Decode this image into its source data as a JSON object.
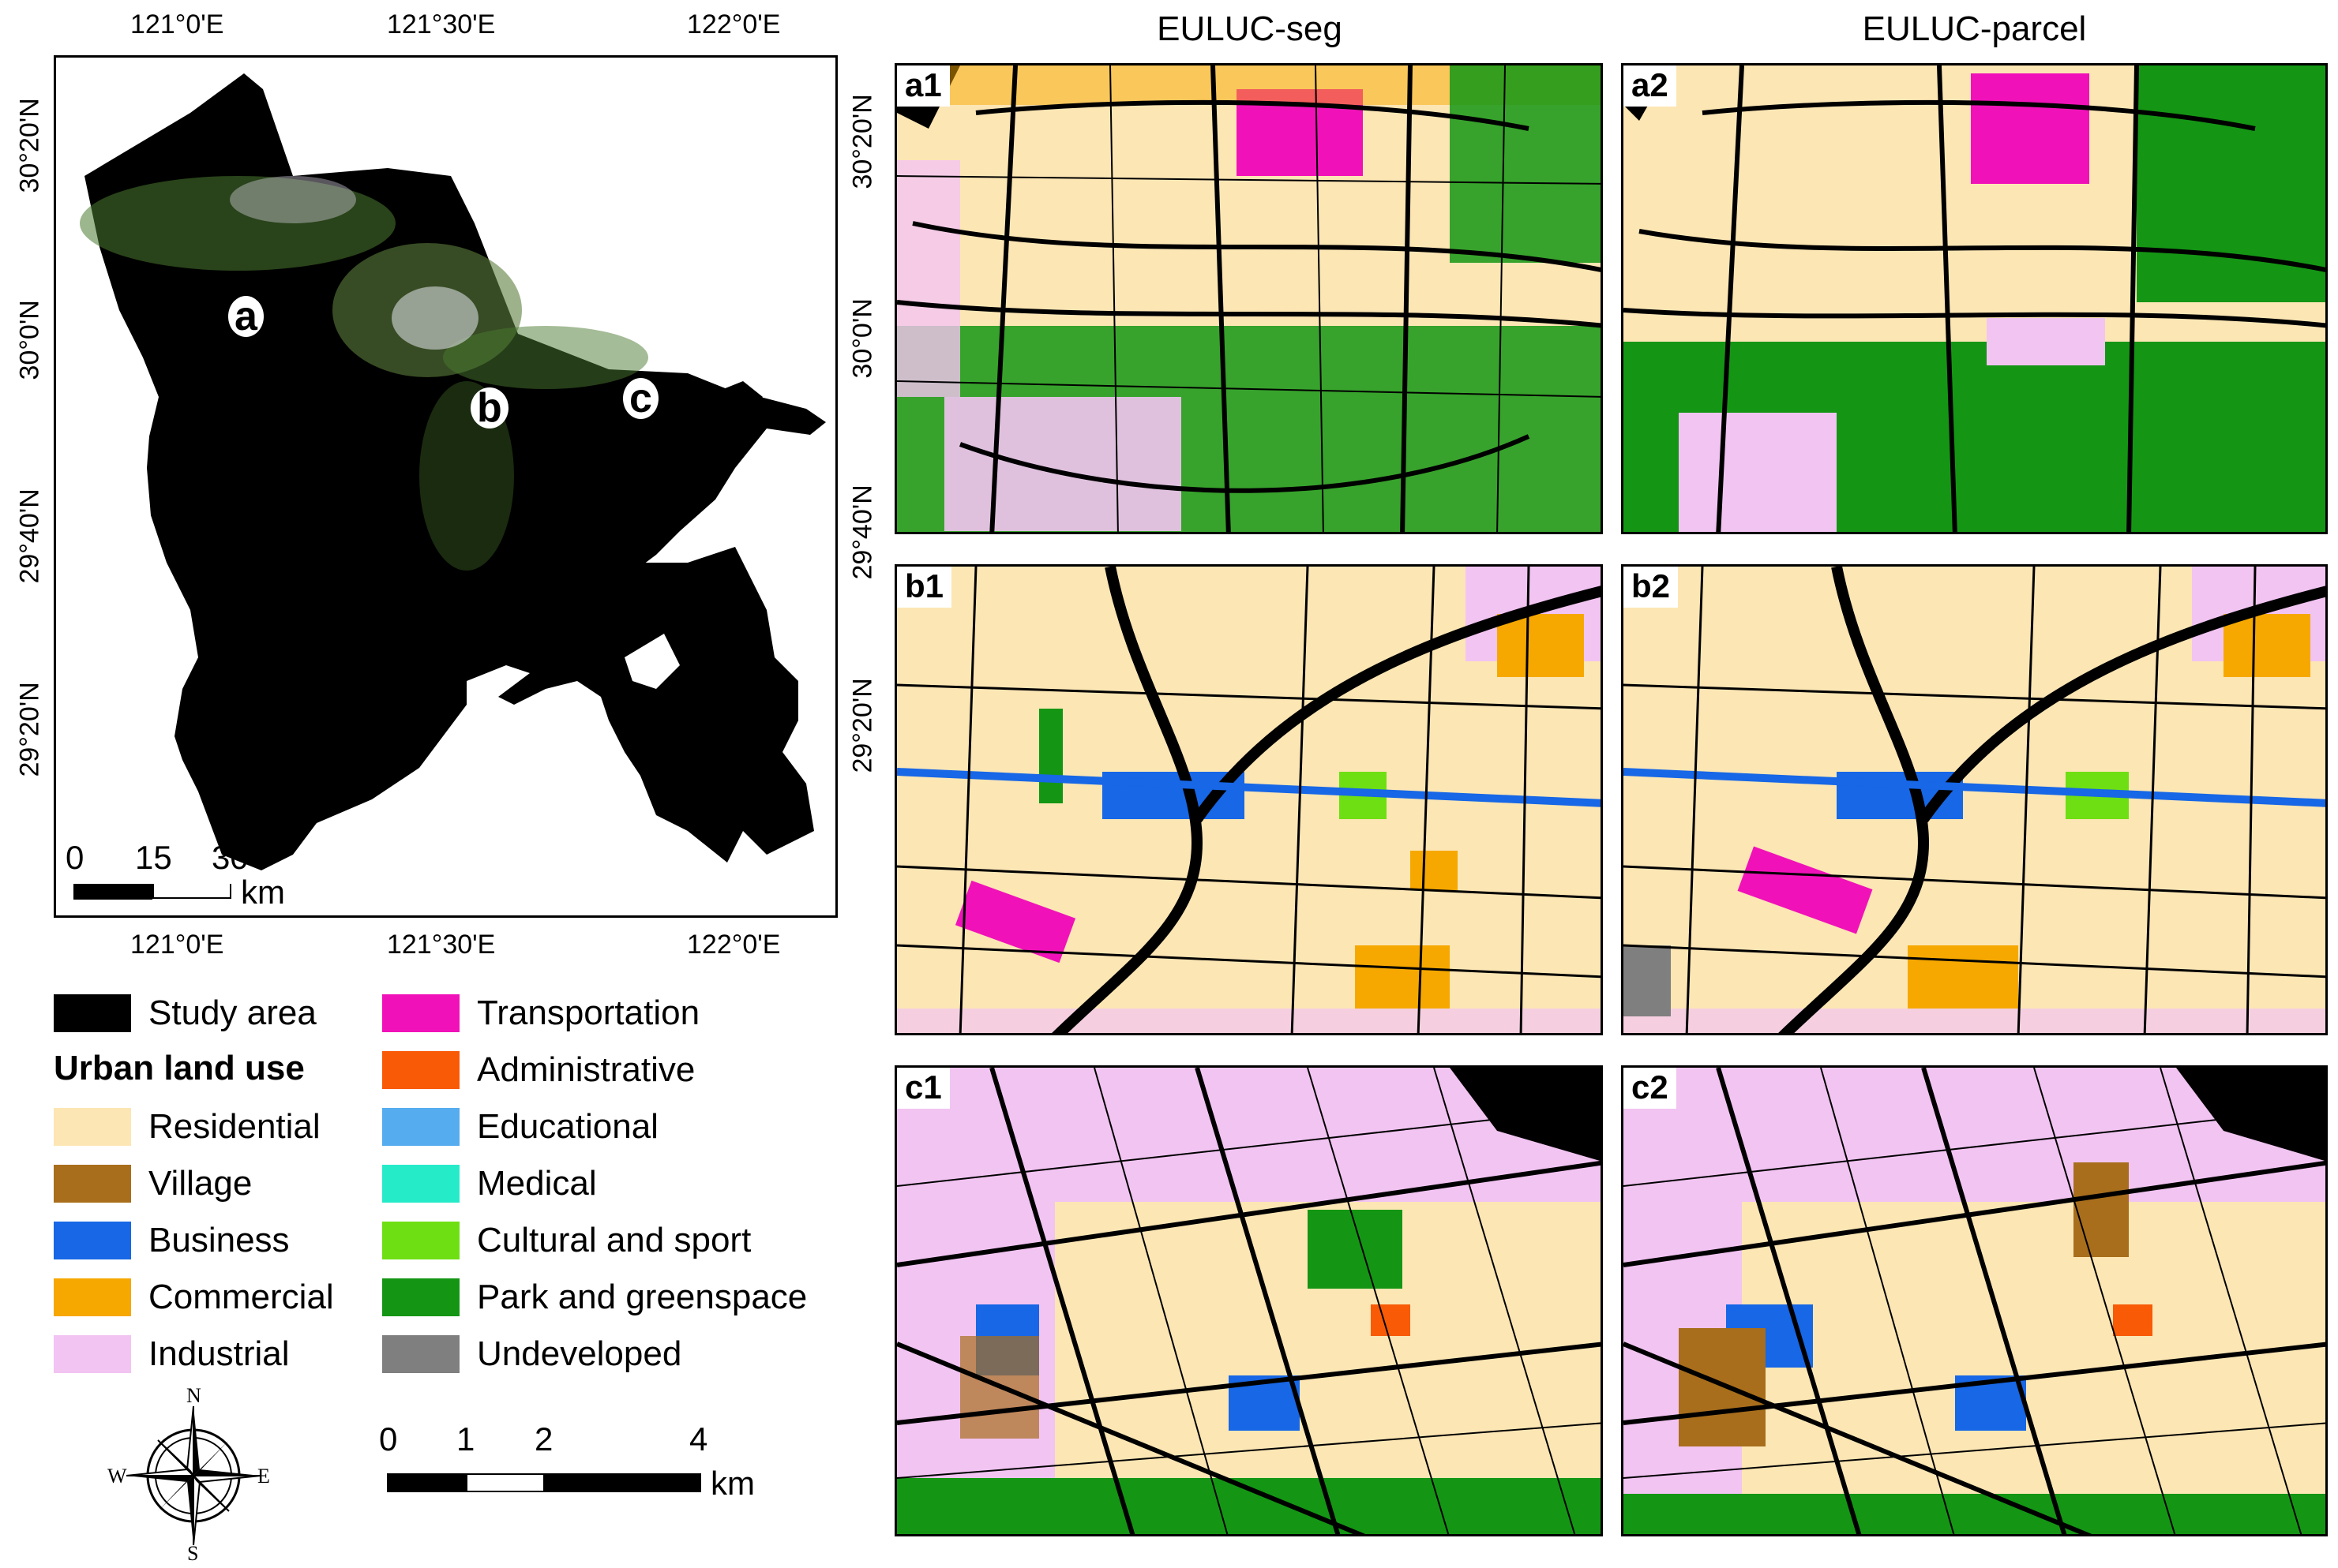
{
  "overview": {
    "top_lon_labels": [
      "121°0'E",
      "121°30'E",
      "122°0'E"
    ],
    "bottom_lon_labels": [
      "121°0'E",
      "121°30'E",
      "122°0'E"
    ],
    "lat_labels": [
      "30°20'N",
      "30°0'N",
      "29°40'N",
      "29°20'N"
    ],
    "site_labels": [
      "a",
      "b",
      "c"
    ],
    "scale": {
      "ticks": [
        "0",
        "15",
        "30"
      ],
      "unit": "km"
    }
  },
  "columns": {
    "left_title": "EULUC-seg",
    "right_title": "EULUC-parcel"
  },
  "panel_lat_labels": {
    "a": [
      "30°20'N",
      "30°0'N",
      "29°40'N"
    ],
    "b": [
      "29°20'N"
    ]
  },
  "panels": [
    "a1",
    "a2",
    "b1",
    "b2",
    "c1",
    "c2"
  ],
  "legend": {
    "study_area": {
      "label": "Study area",
      "color": "#000000"
    },
    "group_title": "Urban land use",
    "left_items": [
      {
        "label": "Residential",
        "color": "#FCE6B4"
      },
      {
        "label": "Village",
        "color": "#A86E1C"
      },
      {
        "label": "Business",
        "color": "#1767E6"
      },
      {
        "label": "Commercial",
        "color": "#F6A800"
      },
      {
        "label": "Industrial",
        "color": "#F2C4F2"
      }
    ],
    "right_items": [
      {
        "label": "Transportation",
        "color": "#F012B8"
      },
      {
        "label": "Administrative",
        "color": "#F85A06"
      },
      {
        "label": "Educational",
        "color": "#55ACEE"
      },
      {
        "label": "Medical",
        "color": "#26EBC8"
      },
      {
        "label": "Cultural and sport",
        "color": "#6EDF12"
      },
      {
        "label": "Park and greenspace",
        "color": "#149614"
      },
      {
        "label": "Undeveloped",
        "color": "#7F7F7F"
      }
    ]
  },
  "compass": {
    "n": "N",
    "s": "S",
    "e": "E",
    "w": "W"
  },
  "detail_scale": {
    "ticks": [
      "0",
      "1",
      "2",
      "4"
    ],
    "unit": "km"
  }
}
